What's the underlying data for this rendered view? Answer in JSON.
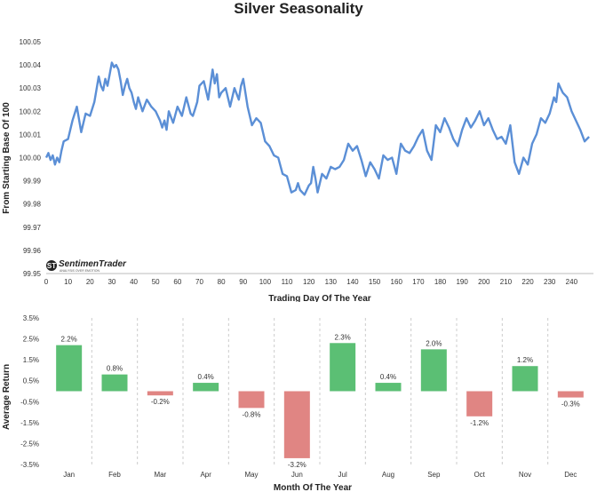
{
  "title": "Silver Seasonality",
  "colors": {
    "line": "#5b8fd6",
    "positive": "#5bbf74",
    "negative": "#e08583",
    "separator": "#cccccc"
  },
  "logo": {
    "text": "SentimenTrader",
    "tagline": "ANALYSIS OVER EMOTION",
    "icon": "sentimentrader-logo-icon"
  },
  "chart_data": [
    {
      "type": "line",
      "xlabel": "Trading Day Of The Year",
      "ylabel": "From Starting Base Of 100",
      "xlim": [
        0,
        250
      ],
      "ylim": [
        99.95,
        100.05
      ],
      "xticks": [
        0,
        10,
        20,
        30,
        40,
        50,
        60,
        70,
        80,
        90,
        100,
        110,
        120,
        130,
        140,
        150,
        160,
        170,
        180,
        190,
        200,
        210,
        220,
        230,
        240
      ],
      "yticks": [
        "100.05",
        "100.04",
        "100.03",
        "100.02",
        "100.01",
        "100.00",
        "99.99",
        "99.98",
        "99.97",
        "99.96",
        "99.95"
      ],
      "grid": false,
      "series": [
        {
          "x": [
            0,
            1,
            2,
            3,
            4,
            5,
            6,
            7,
            8,
            10,
            12,
            14,
            16,
            18,
            20,
            22,
            24,
            25,
            26,
            27,
            28,
            29,
            30,
            31,
            32,
            33,
            34,
            35,
            36,
            37,
            38,
            39,
            40,
            41,
            42,
            44,
            46,
            48,
            50,
            52,
            53,
            54,
            55,
            56,
            58,
            60,
            62,
            64,
            66,
            67,
            68,
            69,
            70,
            72,
            74,
            76,
            77,
            78,
            79,
            80,
            82,
            84,
            86,
            88,
            89,
            90,
            92,
            94,
            96,
            98,
            100,
            102,
            104,
            106,
            108,
            110,
            112,
            114,
            115,
            116,
            118,
            120,
            121,
            122,
            123,
            124,
            126,
            128,
            130,
            132,
            134,
            136,
            138,
            140,
            142,
            144,
            146,
            148,
            150,
            152,
            154,
            156,
            158,
            160,
            162,
            164,
            166,
            168,
            170,
            172,
            174,
            176,
            178,
            180,
            182,
            184,
            186,
            188,
            190,
            192,
            194,
            196,
            198,
            200,
            202,
            204,
            206,
            208,
            210,
            212,
            214,
            216,
            218,
            220,
            222,
            224,
            226,
            228,
            230,
            232,
            233,
            234,
            235,
            236,
            238,
            240,
            242,
            244,
            246,
            248
          ],
          "values": [
            100.0,
            100.002,
            99.999,
            100.001,
            99.997,
            100.0,
            99.998,
            100.003,
            100.007,
            100.008,
            100.016,
            100.022,
            100.011,
            100.019,
            100.018,
            100.024,
            100.035,
            100.031,
            100.029,
            100.034,
            100.031,
            100.036,
            100.041,
            100.039,
            100.04,
            100.038,
            100.033,
            100.027,
            100.031,
            100.034,
            100.03,
            100.028,
            100.024,
            100.021,
            100.026,
            100.02,
            100.025,
            100.022,
            100.02,
            100.016,
            100.013,
            100.016,
            100.012,
            100.02,
            100.015,
            100.022,
            100.018,
            100.026,
            100.019,
            100.018,
            100.021,
            100.024,
            100.031,
            100.033,
            100.025,
            100.038,
            100.032,
            100.036,
            100.026,
            100.028,
            100.03,
            100.022,
            100.03,
            100.025,
            100.031,
            100.034,
            100.022,
            100.014,
            100.017,
            100.015,
            100.007,
            100.005,
            100.001,
            100.0,
            99.993,
            99.992,
            99.985,
            99.986,
            99.989,
            99.986,
            99.984,
            99.988,
            99.989,
            99.996,
            99.991,
            99.985,
            99.993,
            99.991,
            99.996,
            99.995,
            99.996,
            99.999,
            100.006,
            100.003,
            100.005,
            99.999,
            99.992,
            99.998,
            99.995,
            99.991,
            100.001,
            99.999,
            100.0,
            99.993,
            100.006,
            100.003,
            100.002,
            100.005,
            100.009,
            100.012,
            100.003,
            99.999,
            100.014,
            100.011,
            100.017,
            100.013,
            100.008,
            100.005,
            100.012,
            100.017,
            100.013,
            100.016,
            100.02,
            100.014,
            100.017,
            100.012,
            100.008,
            100.009,
            100.006,
            100.014,
            99.998,
            99.993,
            100.0,
            99.997,
            100.006,
            100.01,
            100.017,
            100.015,
            100.019,
            100.026,
            100.024,
            100.032,
            100.03,
            100.028,
            100.026,
            100.02,
            100.016,
            100.012,
            100.007,
            100.009
          ]
        }
      ]
    },
    {
      "type": "bar",
      "xlabel": "Month Of The Year",
      "ylabel": "Average Return",
      "ylim": [
        -3.5,
        3.5
      ],
      "yticks": [
        "3.5%",
        "2.5%",
        "1.5%",
        "0.5%",
        "-0.5%",
        "-1.5%",
        "-2.5%",
        "-3.5%"
      ],
      "ytick_values": [
        3.5,
        2.5,
        1.5,
        0.5,
        -0.5,
        -1.5,
        -2.5,
        -3.5
      ],
      "categories": [
        "Jan",
        "Feb",
        "Mar",
        "Apr",
        "May",
        "Jun",
        "Jul",
        "Aug",
        "Sep",
        "Oct",
        "Nov",
        "Dec"
      ],
      "values": [
        2.2,
        0.8,
        -0.2,
        0.4,
        -0.8,
        -3.2,
        2.3,
        0.4,
        2.0,
        -1.2,
        1.2,
        -0.3
      ],
      "labels": [
        "2.2%",
        "0.8%",
        "-0.2%",
        "0.4%",
        "-0.8%",
        "-3.2%",
        "2.3%",
        "0.4%",
        "2.0%",
        "-1.2%",
        "1.2%",
        "-0.3%"
      ],
      "grid": false
    }
  ]
}
